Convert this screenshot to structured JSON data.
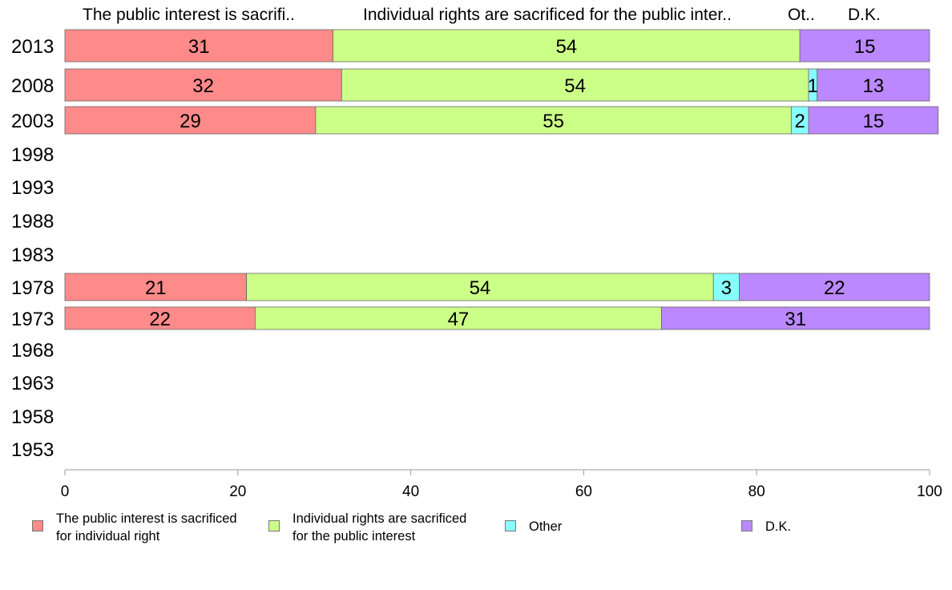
{
  "chart_data": {
    "type": "bar",
    "orientation": "horizontal",
    "stacked": true,
    "column_headers": [
      "The public interest is sacrifi..",
      "Individual rights are sacrificed for the public inter..",
      "Ot..",
      "D.K."
    ],
    "categories": [
      "2013",
      "2008",
      "2003",
      "1998",
      "1993",
      "1988",
      "1983",
      "1978",
      "1973",
      "1968",
      "1963",
      "1958",
      "1953"
    ],
    "series": [
      {
        "name": "The public interest is sacrificed\nfor individual right",
        "color": "#ff8a8a",
        "values": [
          31,
          32,
          29,
          null,
          null,
          null,
          null,
          21,
          22,
          null,
          null,
          null,
          null
        ]
      },
      {
        "name": "Individual rights are sacrificed\nfor the public interest",
        "color": "#ccff88",
        "values": [
          54,
          54,
          55,
          null,
          null,
          null,
          null,
          54,
          47,
          null,
          null,
          null,
          null
        ]
      },
      {
        "name": "Other",
        "color": "#88ffff",
        "values": [
          null,
          1,
          2,
          null,
          null,
          null,
          null,
          3,
          null,
          null,
          null,
          null,
          null
        ]
      },
      {
        "name": "D.K.",
        "color": "#bb88ff",
        "values": [
          15,
          13,
          15,
          null,
          null,
          null,
          null,
          22,
          31,
          null,
          null,
          null,
          null
        ]
      }
    ],
    "x_ticks": [
      "0",
      "20",
      "40",
      "60",
      "80",
      "100"
    ],
    "xlim": [
      0,
      100
    ],
    "grid": false,
    "legend_position": "bottom"
  }
}
